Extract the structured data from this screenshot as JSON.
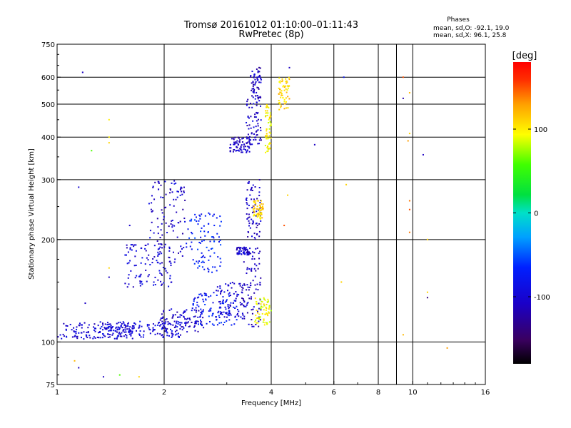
{
  "header": {
    "title_line1": "Tromsø 20161012 01:10:00–01:11:43",
    "title_line2": "RwPretec (8p)",
    "stats_title": "Phases",
    "stats_line1": "mean, sd,O: -92.1, 19.0",
    "stats_line2": "mean, sd,X:  96.1, 25.8"
  },
  "colorbar": {
    "unit_label": "[deg]",
    "range": [
      -180,
      180
    ],
    "tick_labels": [
      "100",
      "0",
      "-100"
    ],
    "tick_values": [
      100,
      0,
      -100
    ]
  },
  "chart_data": {
    "type": "scatter",
    "xlabel": "Frequency [MHz]",
    "ylabel": "Stationary phase Virtual Height [km]",
    "x_scale": "log",
    "y_scale": "log",
    "xlim": [
      1,
      16
    ],
    "ylim": [
      75,
      750
    ],
    "x_ticks": [
      {
        "value": 1,
        "label": "1"
      },
      {
        "value": 2,
        "label": "2"
      },
      {
        "value": 4,
        "label": "4"
      },
      {
        "value": 6,
        "label": "6"
      },
      {
        "value": 8,
        "label": "8"
      },
      {
        "value": 10,
        "label": "10"
      },
      {
        "value": 16,
        "label": "16"
      }
    ],
    "x_grid": [
      2,
      4,
      6,
      8,
      9,
      10
    ],
    "y_ticks": [
      {
        "value": 75,
        "label": "75"
      },
      {
        "value": 100,
        "label": "100"
      },
      {
        "value": 200,
        "label": "200"
      },
      {
        "value": 300,
        "label": "300"
      },
      {
        "value": 400,
        "label": "400"
      },
      {
        "value": 500,
        "label": "500"
      },
      {
        "value": 600,
        "label": "600"
      },
      {
        "value": 750,
        "label": "750"
      }
    ],
    "y_grid": [
      100,
      200,
      300,
      400,
      500,
      600
    ],
    "grid": true,
    "color_encoding": "phase in deg, rainbow scale -180 (black) to 180 (red)",
    "series": [
      {
        "x_range": [
          1.0,
          1.65
        ],
        "y_range": [
          102,
          114
        ],
        "phase": -100
      },
      {
        "x_range": [
          1.3,
          2.3
        ],
        "y_range": [
          103,
          115
        ],
        "phase": -95
      },
      {
        "x_range": [
          1.95,
          2.6
        ],
        "y_range": [
          107,
          125
        ],
        "phase": -105
      },
      {
        "x_range": [
          2.4,
          3.2
        ],
        "y_range": [
          112,
          140
        ],
        "phase": -75
      },
      {
        "x_range": [
          2.8,
          3.45
        ],
        "y_range": [
          118,
          150
        ],
        "phase": -100
      },
      {
        "x_range": [
          3.3,
          3.75
        ],
        "y_range": [
          110,
          190
        ],
        "phase": -110
      },
      {
        "x_range": [
          3.6,
          4.0
        ],
        "y_range": [
          112,
          135
        ],
        "phase": 95
      },
      {
        "x_range": [
          1.55,
          2.1
        ],
        "y_range": [
          145,
          195
        ],
        "phase": -100
      },
      {
        "x_range": [
          1.8,
          2.3
        ],
        "y_range": [
          170,
          300
        ],
        "phase": -105
      },
      {
        "x_range": [
          2.3,
          2.9
        ],
        "y_range": [
          160,
          240
        ],
        "phase": -70
      },
      {
        "x_range": [
          3.2,
          3.5
        ],
        "y_range": [
          180,
          190
        ],
        "phase": -105
      },
      {
        "x_range": [
          3.4,
          3.75
        ],
        "y_range": [
          200,
          300
        ],
        "phase": -110
      },
      {
        "x_range": [
          3.55,
          3.8
        ],
        "y_range": [
          230,
          260
        ],
        "phase": 110
      },
      {
        "x_range": [
          3.05,
          3.5
        ],
        "y_range": [
          360,
          400
        ],
        "phase": -110
      },
      {
        "x_range": [
          3.4,
          3.75
        ],
        "y_range": [
          380,
          520
        ],
        "phase": -105
      },
      {
        "x_range": [
          3.5,
          3.75
        ],
        "y_range": [
          520,
          650
        ],
        "phase": -110
      },
      {
        "x_range": [
          4.2,
          4.5
        ],
        "y_range": [
          480,
          600
        ],
        "phase": 110
      },
      {
        "x_range": [
          3.85,
          4.0
        ],
        "y_range": [
          360,
          500
        ],
        "phase": 100
      }
    ],
    "isolated_points": [
      {
        "x": 1.4,
        "y": 400,
        "phase": 100
      },
      {
        "x": 1.4,
        "y": 450,
        "phase": 100
      },
      {
        "x": 1.4,
        "y": 385,
        "phase": 110
      },
      {
        "x": 1.6,
        "y": 220,
        "phase": -105
      },
      {
        "x": 1.15,
        "y": 285,
        "phase": -100
      },
      {
        "x": 1.25,
        "y": 365,
        "phase": 60
      },
      {
        "x": 1.18,
        "y": 620,
        "phase": -110
      },
      {
        "x": 4.5,
        "y": 640,
        "phase": -110
      },
      {
        "x": 4.45,
        "y": 270,
        "phase": 110
      },
      {
        "x": 4.35,
        "y": 220,
        "phase": 150
      },
      {
        "x": 5.3,
        "y": 380,
        "phase": -110
      },
      {
        "x": 6.4,
        "y": 600,
        "phase": -80
      },
      {
        "x": 6.5,
        "y": 290,
        "phase": 110
      },
      {
        "x": 6.3,
        "y": 150,
        "phase": 110
      },
      {
        "x": 9.4,
        "y": 520,
        "phase": -120
      },
      {
        "x": 9.4,
        "y": 600,
        "phase": 150
      },
      {
        "x": 9.8,
        "y": 540,
        "phase": 120
      },
      {
        "x": 9.8,
        "y": 410,
        "phase": 110
      },
      {
        "x": 9.7,
        "y": 390,
        "phase": 130
      },
      {
        "x": 9.8,
        "y": 260,
        "phase": 140
      },
      {
        "x": 9.8,
        "y": 245,
        "phase": 150
      },
      {
        "x": 9.8,
        "y": 210,
        "phase": 140
      },
      {
        "x": 9.4,
        "y": 105,
        "phase": 120
      },
      {
        "x": 10.7,
        "y": 355,
        "phase": -110
      },
      {
        "x": 11.0,
        "y": 200,
        "phase": 110
      },
      {
        "x": 11.0,
        "y": 135,
        "phase": -140
      },
      {
        "x": 11.0,
        "y": 140,
        "phase": 110
      },
      {
        "x": 12.5,
        "y": 96,
        "phase": 130
      },
      {
        "x": 1.12,
        "y": 88,
        "phase": 120
      },
      {
        "x": 1.15,
        "y": 84,
        "phase": -110
      },
      {
        "x": 1.5,
        "y": 80,
        "phase": 60
      },
      {
        "x": 1.35,
        "y": 79,
        "phase": -110
      },
      {
        "x": 1.7,
        "y": 79,
        "phase": 110
      },
      {
        "x": 1.0,
        "y": 140,
        "phase": 110
      },
      {
        "x": 1.2,
        "y": 130,
        "phase": -110
      },
      {
        "x": 1.4,
        "y": 165,
        "phase": 110
      },
      {
        "x": 1.4,
        "y": 155,
        "phase": -110
      }
    ]
  }
}
